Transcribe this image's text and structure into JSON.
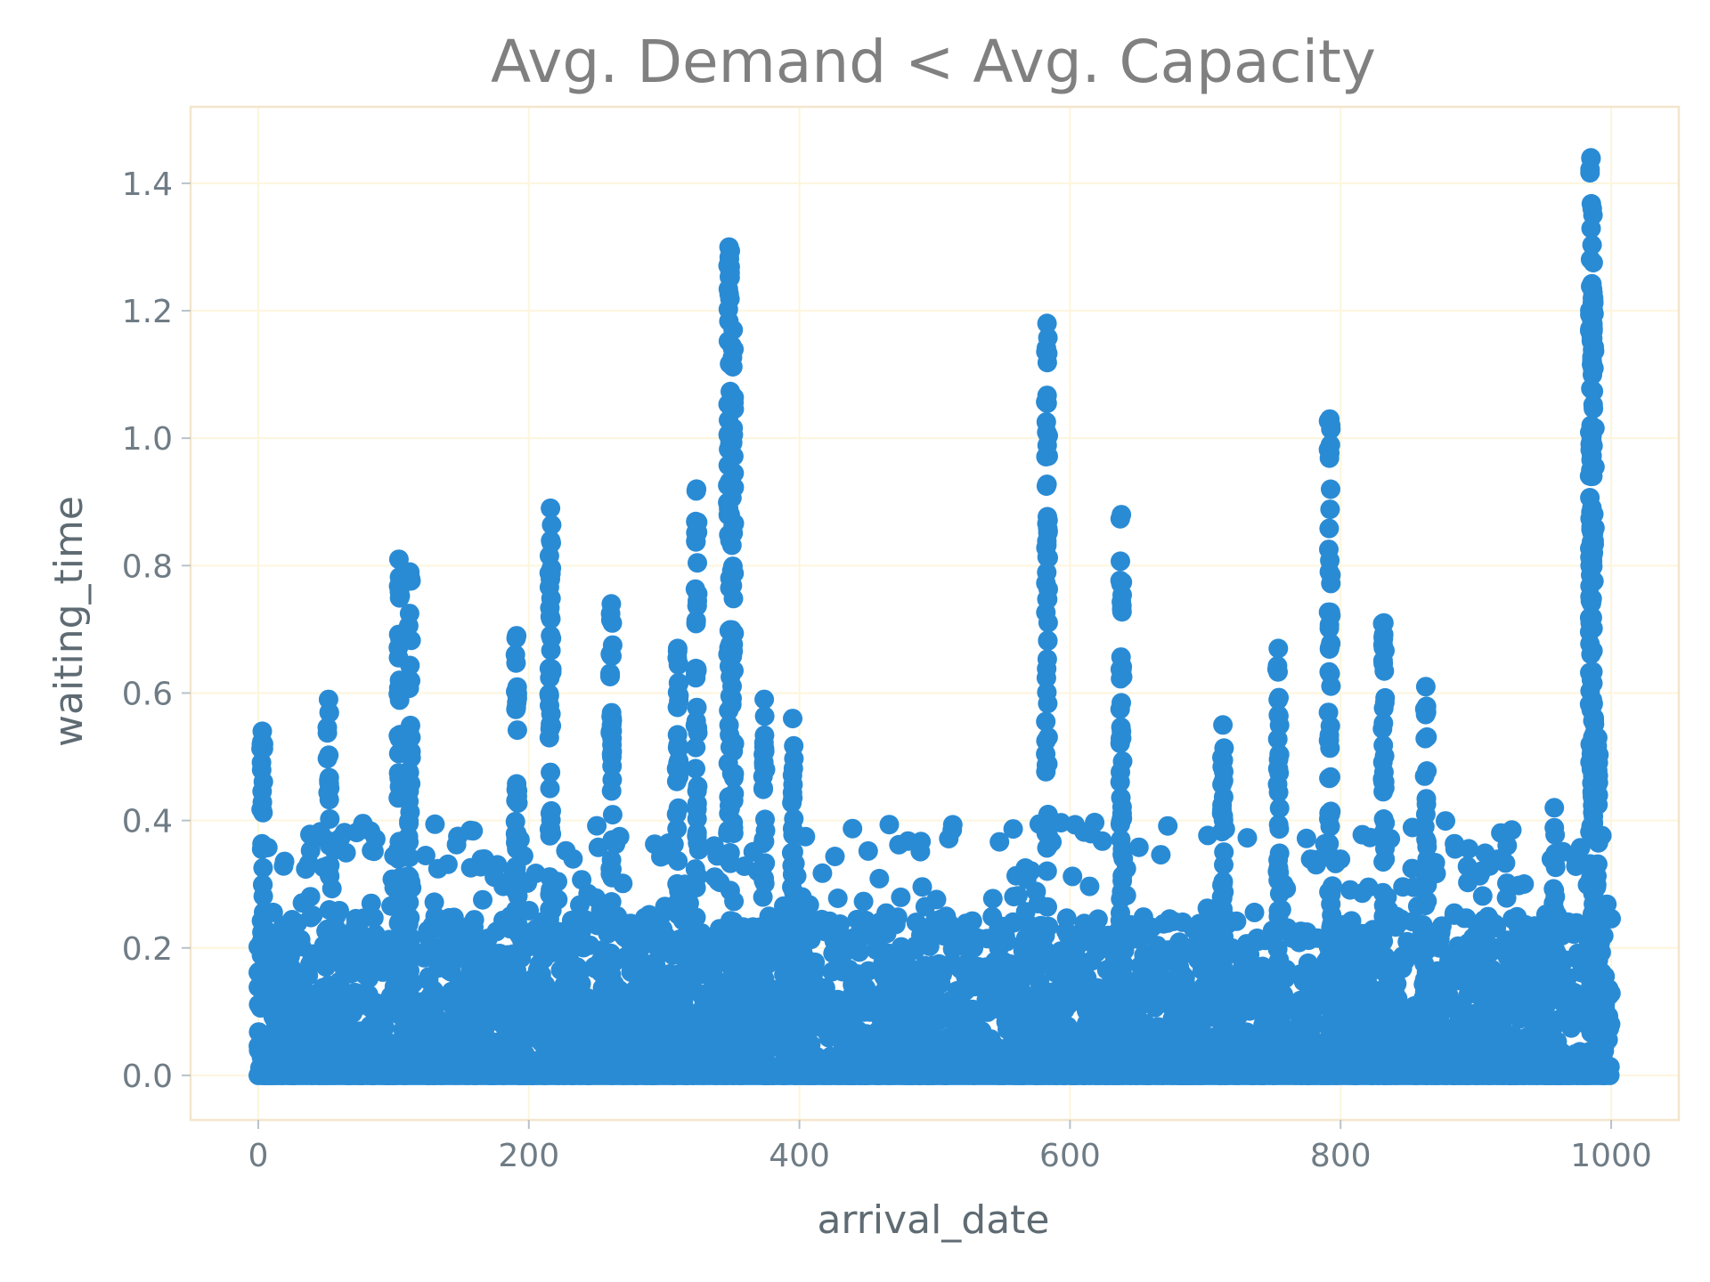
{
  "chart_data": {
    "type": "scatter",
    "title": "Avg. Demand < Avg. Capacity",
    "xlabel": "arrival_date",
    "ylabel": "waiting_time",
    "xlim": [
      -50,
      1050
    ],
    "ylim": [
      -0.07,
      1.52
    ],
    "x_ticks": [
      0,
      200,
      400,
      600,
      800,
      1000
    ],
    "y_ticks": [
      0.0,
      0.2,
      0.4,
      0.6,
      0.8,
      1.0,
      1.2,
      1.4
    ],
    "x_tick_labels": [
      "0",
      "200",
      "400",
      "600",
      "800",
      "1000"
    ],
    "y_tick_labels": [
      "0.0",
      "0.2",
      "0.4",
      "0.6",
      "0.8",
      "1.0",
      "1.2",
      "1.4"
    ],
    "grid": true,
    "point_color": "#2a8bd5",
    "peaks": [
      {
        "x": 3,
        "y": 0.54
      },
      {
        "x": 52,
        "y": 0.59
      },
      {
        "x": 104,
        "y": 0.81
      },
      {
        "x": 112,
        "y": 0.79
      },
      {
        "x": 191,
        "y": 0.69
      },
      {
        "x": 216,
        "y": 0.89
      },
      {
        "x": 261,
        "y": 0.74
      },
      {
        "x": 310,
        "y": 0.67
      },
      {
        "x": 324,
        "y": 0.92
      },
      {
        "x": 348,
        "y": 1.3
      },
      {
        "x": 351,
        "y": 1.17
      },
      {
        "x": 374,
        "y": 0.59
      },
      {
        "x": 395,
        "y": 0.56
      },
      {
        "x": 583,
        "y": 1.18
      },
      {
        "x": 638,
        "y": 0.88
      },
      {
        "x": 713,
        "y": 0.55
      },
      {
        "x": 754,
        "y": 0.67
      },
      {
        "x": 792,
        "y": 1.03
      },
      {
        "x": 832,
        "y": 0.71
      },
      {
        "x": 863,
        "y": 0.61
      },
      {
        "x": 958,
        "y": 0.42
      },
      {
        "x": 985,
        "y": 1.44
      },
      {
        "x": 986,
        "y": 1.36
      },
      {
        "x": 987,
        "y": 1.22
      },
      {
        "x": 990,
        "y": 0.53
      }
    ]
  }
}
